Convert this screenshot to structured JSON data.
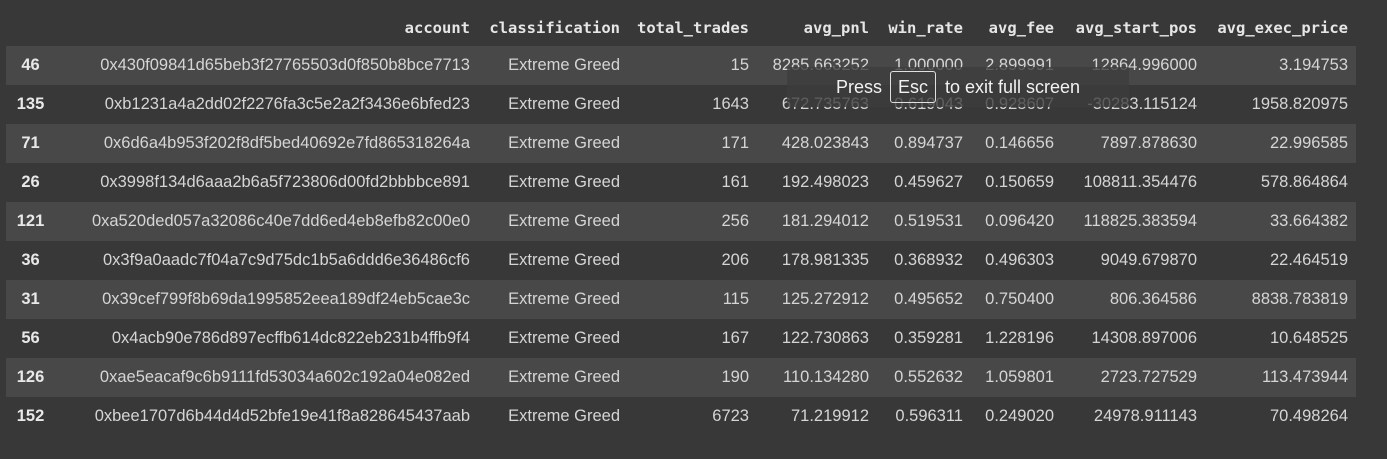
{
  "table": {
    "columns": [
      "",
      "account",
      "classification",
      "total_trades",
      "avg_pnl",
      "win_rate",
      "avg_fee",
      "avg_start_pos",
      "avg_exec_price"
    ],
    "rows": [
      [
        "46",
        "0x430f09841d65beb3f27765503d0f850b8bce7713",
        "Extreme Greed",
        "15",
        "8285.663252",
        "1.000000",
        "2.899991",
        "12864.996000",
        "3.194753"
      ],
      [
        "135",
        "0xb1231a4a2dd02f2276fa3c5e2a2f3436e6bfed23",
        "Extreme Greed",
        "1643",
        "672.735763",
        "0.619043",
        "0.928607",
        "-30283.115124",
        "1958.820975"
      ],
      [
        "71",
        "0x6d6a4b953f202f8df5bed40692e7fd865318264a",
        "Extreme Greed",
        "171",
        "428.023843",
        "0.894737",
        "0.146656",
        "7897.878630",
        "22.996585"
      ],
      [
        "26",
        "0x3998f134d6aaa2b6a5f723806d00fd2bbbbce891",
        "Extreme Greed",
        "161",
        "192.498023",
        "0.459627",
        "0.150659",
        "108811.354476",
        "578.864864"
      ],
      [
        "121",
        "0xa520ded057a32086c40e7dd6ed4eb8efb82c00e0",
        "Extreme Greed",
        "256",
        "181.294012",
        "0.519531",
        "0.096420",
        "118825.383594",
        "33.664382"
      ],
      [
        "36",
        "0x3f9a0aadc7f04a7c9d75dc1b5a6ddd6e36486cf6",
        "Extreme Greed",
        "206",
        "178.981335",
        "0.368932",
        "0.496303",
        "9049.679870",
        "22.464519"
      ],
      [
        "31",
        "0x39cef799f8b69da1995852eea189df24eb5cae3c",
        "Extreme Greed",
        "115",
        "125.272912",
        "0.495652",
        "0.750400",
        "806.364586",
        "8838.783819"
      ],
      [
        "56",
        "0x4acb90e786d897ecffb614dc822eb231b4ffb9f4",
        "Extreme Greed",
        "167",
        "122.730863",
        "0.359281",
        "1.228196",
        "14308.897006",
        "10.648525"
      ],
      [
        "126",
        "0xae5eacaf9c6b9111fd53034a602c192a04e082ed",
        "Extreme Greed",
        "190",
        "110.134280",
        "0.552632",
        "1.059801",
        "2723.727529",
        "113.473944"
      ],
      [
        "152",
        "0xbee1707d6b44d4d52bfe19e41f8a828645437aab",
        "Extreme Greed",
        "6723",
        "71.219912",
        "0.596311",
        "0.249020",
        "24978.911143",
        "70.498264"
      ]
    ]
  },
  "fullscreen_notice": {
    "press": "Press",
    "key": "Esc",
    "message": "to exit full screen"
  },
  "colors": {
    "background": "#383838",
    "row_stripe": "#484848",
    "text": "#d5d5d5"
  }
}
